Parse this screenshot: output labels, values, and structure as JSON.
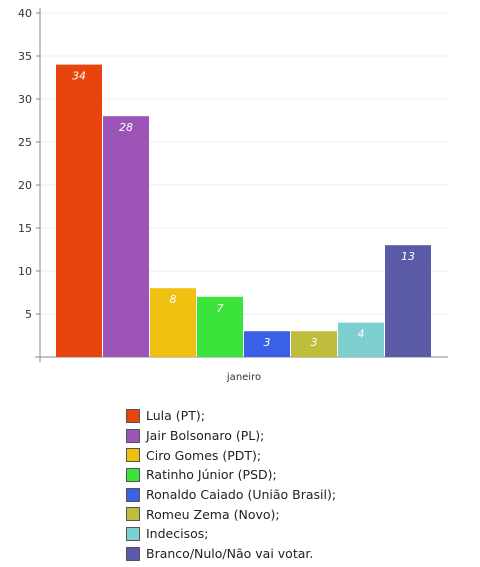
{
  "chart_data": {
    "type": "bar",
    "categories": [
      "janeiro"
    ],
    "series": [
      {
        "name": "Lula (PT);",
        "values": [
          34
        ],
        "color": "#e8450e"
      },
      {
        "name": "Jair Bolsonaro (PL);",
        "values": [
          28
        ],
        "color": "#9c55b6"
      },
      {
        "name": "Ciro Gomes (PDT);",
        "values": [
          8
        ],
        "color": "#f0c010"
      },
      {
        "name": "Ratinho Júnior (PSD);",
        "values": [
          7
        ],
        "color": "#3be43b"
      },
      {
        "name": "Ronaldo Caiado (União Brasil);",
        "values": [
          3
        ],
        "color": "#3a61e8"
      },
      {
        "name": "Romeu Zema (Novo);",
        "values": [
          3
        ],
        "color": "#bfbd3c"
      },
      {
        "name": "Indecisos;",
        "values": [
          4
        ],
        "color": "#7ecfd0"
      },
      {
        "name": "Branco/Nulo/Não vai votar.",
        "values": [
          13
        ],
        "color": "#5a5aa8"
      }
    ],
    "yticks": [
      5,
      10,
      15,
      20,
      25,
      30,
      35,
      40
    ],
    "ylim": [
      0,
      40
    ],
    "grid": true,
    "legend_position": "bottom"
  }
}
